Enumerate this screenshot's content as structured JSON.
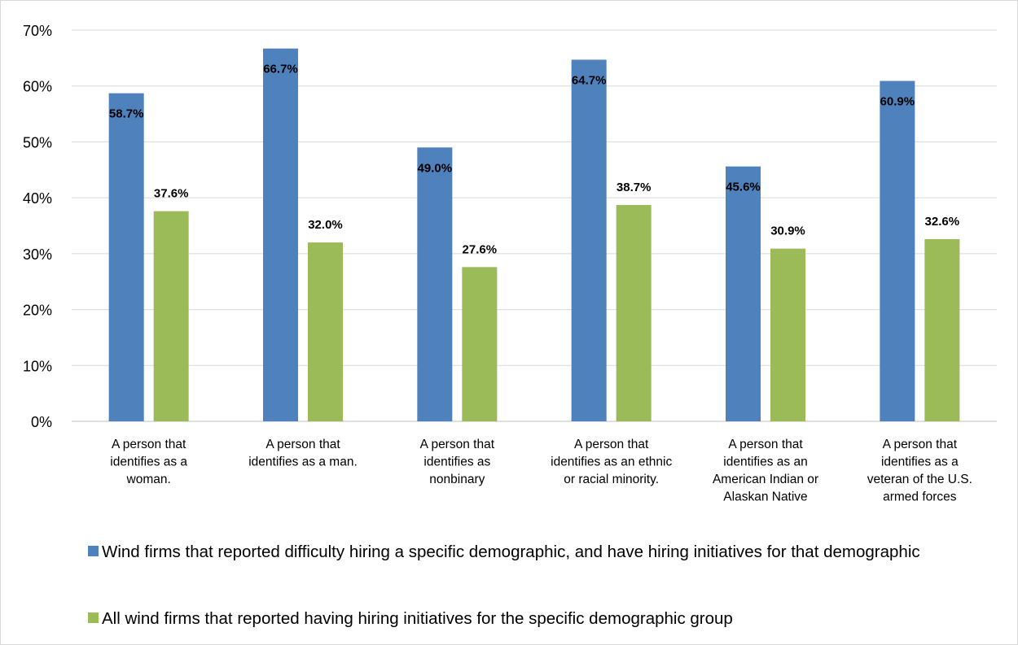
{
  "chart_data": {
    "type": "bar",
    "categories": [
      [
        "A person that",
        "identifies as a",
        "woman."
      ],
      [
        "A person that",
        "identifies as a man."
      ],
      [
        "A person that",
        "identifies as",
        "nonbinary"
      ],
      [
        "A person that",
        "identifies as an ethnic",
        "or racial minority."
      ],
      [
        "A person that",
        "identifies as an",
        "American Indian or",
        "Alaskan Native"
      ],
      [
        "A person that",
        "identifies as a",
        "veteran of the U.S.",
        "armed forces"
      ]
    ],
    "series": [
      {
        "name": "Wind firms that reported difficulty hiring a specific demographic, and have hiring initiatives for that demographic",
        "values": [
          58.7,
          66.7,
          49.0,
          64.7,
          45.6,
          60.9
        ],
        "labels": [
          "58.7%",
          "66.7%",
          "49.0%",
          "64.7%",
          "45.6%",
          "60.9%"
        ],
        "color": "#4f81bd"
      },
      {
        "name": "All wind firms that reported having hiring initiatives for the specific demographic group",
        "values": [
          37.6,
          32.0,
          27.6,
          38.7,
          30.9,
          32.6
        ],
        "labels": [
          "37.6%",
          "32.0%",
          "27.6%",
          "38.7%",
          "30.9%",
          "32.6%"
        ],
        "color": "#9bbb59"
      }
    ],
    "yticks": [
      "0%",
      "10%",
      "20%",
      "30%",
      "40%",
      "50%",
      "60%",
      "70%"
    ],
    "ylim": [
      0,
      70
    ],
    "grid": true,
    "legend_position": "bottom",
    "title": "",
    "xlabel": "",
    "ylabel": ""
  }
}
